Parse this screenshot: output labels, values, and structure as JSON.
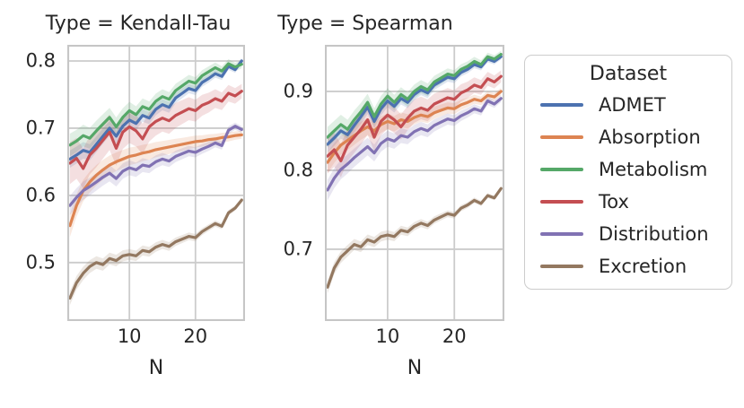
{
  "figure": {
    "background": "#ffffff",
    "text_color": "#262626",
    "grid_color": "#cccccc",
    "axis_border_color": "#c6c6c6"
  },
  "legend": {
    "title": "Dataset",
    "position": "right-outside",
    "entries": [
      {
        "label": "ADMET",
        "color": "#4C72B0"
      },
      {
        "label": "Absorption",
        "color": "#DD8452"
      },
      {
        "label": "Metabolism",
        "color": "#55A868"
      },
      {
        "label": "Tox",
        "color": "#C44E52"
      },
      {
        "label": "Distribution",
        "color": "#8172B3"
      },
      {
        "label": "Excretion",
        "color": "#937860"
      }
    ]
  },
  "chart_data": [
    {
      "type": "line",
      "title": "Type = Kendall-Tau",
      "xlabel": "N",
      "ylabel": "",
      "grid": true,
      "x": [
        1,
        2,
        3,
        4,
        5,
        6,
        7,
        8,
        9,
        10,
        11,
        12,
        13,
        14,
        15,
        16,
        17,
        18,
        19,
        20,
        21,
        22,
        23,
        24,
        25,
        26,
        27
      ],
      "xticks": [
        10,
        20
      ],
      "yticks": [
        0.5,
        0.6,
        0.7,
        0.8
      ],
      "xlim": [
        0.6,
        27.5
      ],
      "ylim": [
        0.413,
        0.824
      ],
      "series": [
        {
          "name": "ADMET",
          "color": "#4C72B0",
          "band": 0.01,
          "values": [
            0.654,
            0.66,
            0.667,
            0.664,
            0.676,
            0.688,
            0.7,
            0.688,
            0.703,
            0.712,
            0.707,
            0.719,
            0.715,
            0.728,
            0.735,
            0.731,
            0.745,
            0.752,
            0.759,
            0.756,
            0.768,
            0.774,
            0.781,
            0.777,
            0.792,
            0.787,
            0.8
          ]
        },
        {
          "name": "Absorption",
          "color": "#DD8452",
          "band": 0.013,
          "values": [
            0.555,
            0.585,
            0.607,
            0.62,
            0.63,
            0.638,
            0.645,
            0.65,
            0.654,
            0.658,
            0.66,
            0.663,
            0.665,
            0.668,
            0.67,
            0.672,
            0.674,
            0.676,
            0.678,
            0.68,
            0.681,
            0.683,
            0.684,
            0.686,
            0.687,
            0.689,
            0.69
          ]
        },
        {
          "name": "Metabolism",
          "color": "#55A868",
          "band": 0.013,
          "values": [
            0.675,
            0.681,
            0.689,
            0.685,
            0.696,
            0.706,
            0.716,
            0.702,
            0.716,
            0.726,
            0.72,
            0.732,
            0.728,
            0.74,
            0.747,
            0.743,
            0.756,
            0.763,
            0.77,
            0.767,
            0.778,
            0.784,
            0.79,
            0.785,
            0.796,
            0.791,
            0.795
          ]
        },
        {
          "name": "Tox",
          "color": "#C44E52",
          "band": 0.024,
          "values": [
            0.648,
            0.655,
            0.64,
            0.66,
            0.67,
            0.682,
            0.694,
            0.67,
            0.694,
            0.702,
            0.696,
            0.684,
            0.702,
            0.71,
            0.715,
            0.711,
            0.719,
            0.724,
            0.729,
            0.726,
            0.734,
            0.738,
            0.744,
            0.74,
            0.752,
            0.748,
            0.755
          ]
        },
        {
          "name": "Distribution",
          "color": "#8172B3",
          "band": 0.011,
          "values": [
            0.585,
            0.597,
            0.607,
            0.613,
            0.62,
            0.627,
            0.633,
            0.625,
            0.636,
            0.641,
            0.638,
            0.645,
            0.643,
            0.65,
            0.654,
            0.651,
            0.658,
            0.662,
            0.666,
            0.664,
            0.669,
            0.673,
            0.678,
            0.674,
            0.697,
            0.703,
            0.698
          ]
        },
        {
          "name": "Excretion",
          "color": "#937860",
          "band": 0.008,
          "values": [
            0.447,
            0.47,
            0.484,
            0.494,
            0.5,
            0.497,
            0.506,
            0.503,
            0.51,
            0.512,
            0.51,
            0.518,
            0.516,
            0.523,
            0.527,
            0.524,
            0.531,
            0.535,
            0.539,
            0.537,
            0.546,
            0.552,
            0.558,
            0.554,
            0.574,
            0.581,
            0.593
          ]
        }
      ]
    },
    {
      "type": "line",
      "title": "Type = Spearman",
      "xlabel": "N",
      "ylabel": "",
      "grid": true,
      "x": [
        1,
        2,
        3,
        4,
        5,
        6,
        7,
        8,
        9,
        10,
        11,
        12,
        13,
        14,
        15,
        16,
        17,
        18,
        19,
        20,
        21,
        22,
        23,
        24,
        25,
        26,
        27
      ],
      "xticks": [
        10,
        20
      ],
      "yticks": [
        0.7,
        0.8,
        0.9
      ],
      "xlim": [
        0.6,
        27.5
      ],
      "ylim": [
        0.609,
        0.959
      ],
      "series": [
        {
          "name": "ADMET",
          "color": "#4C72B0",
          "band": 0.008,
          "values": [
            0.833,
            0.841,
            0.85,
            0.845,
            0.857,
            0.868,
            0.88,
            0.862,
            0.878,
            0.888,
            0.881,
            0.891,
            0.886,
            0.896,
            0.902,
            0.898,
            0.908,
            0.913,
            0.918,
            0.916,
            0.924,
            0.928,
            0.934,
            0.931,
            0.941,
            0.938,
            0.944
          ]
        },
        {
          "name": "Absorption",
          "color": "#DD8452",
          "band": 0.01,
          "values": [
            0.81,
            0.822,
            0.832,
            0.838,
            0.844,
            0.85,
            0.855,
            0.85,
            0.858,
            0.862,
            0.859,
            0.864,
            0.862,
            0.867,
            0.87,
            0.868,
            0.873,
            0.876,
            0.879,
            0.878,
            0.883,
            0.886,
            0.89,
            0.888,
            0.895,
            0.893,
            0.9
          ]
        },
        {
          "name": "Metabolism",
          "color": "#55A868",
          "band": 0.01,
          "values": [
            0.842,
            0.85,
            0.858,
            0.852,
            0.864,
            0.874,
            0.886,
            0.868,
            0.884,
            0.894,
            0.886,
            0.896,
            0.89,
            0.9,
            0.906,
            0.902,
            0.912,
            0.917,
            0.922,
            0.92,
            0.928,
            0.932,
            0.938,
            0.934,
            0.944,
            0.941,
            0.947
          ]
        },
        {
          "name": "Tox",
          "color": "#C44E52",
          "band": 0.017,
          "values": [
            0.818,
            0.826,
            0.812,
            0.832,
            0.842,
            0.852,
            0.864,
            0.842,
            0.862,
            0.87,
            0.864,
            0.855,
            0.866,
            0.875,
            0.879,
            0.876,
            0.884,
            0.888,
            0.892,
            0.89,
            0.898,
            0.902,
            0.908,
            0.905,
            0.916,
            0.912,
            0.919
          ]
        },
        {
          "name": "Distribution",
          "color": "#8172B3",
          "band": 0.01,
          "values": [
            0.775,
            0.79,
            0.801,
            0.808,
            0.816,
            0.823,
            0.83,
            0.822,
            0.834,
            0.84,
            0.837,
            0.844,
            0.842,
            0.849,
            0.853,
            0.85,
            0.857,
            0.861,
            0.865,
            0.863,
            0.869,
            0.873,
            0.878,
            0.875,
            0.888,
            0.884,
            0.891
          ]
        },
        {
          "name": "Excretion",
          "color": "#937860",
          "band": 0.006,
          "values": [
            0.652,
            0.676,
            0.69,
            0.698,
            0.706,
            0.703,
            0.712,
            0.709,
            0.716,
            0.718,
            0.716,
            0.724,
            0.722,
            0.729,
            0.733,
            0.73,
            0.737,
            0.741,
            0.745,
            0.743,
            0.752,
            0.756,
            0.762,
            0.758,
            0.768,
            0.765,
            0.777
          ]
        }
      ]
    }
  ]
}
